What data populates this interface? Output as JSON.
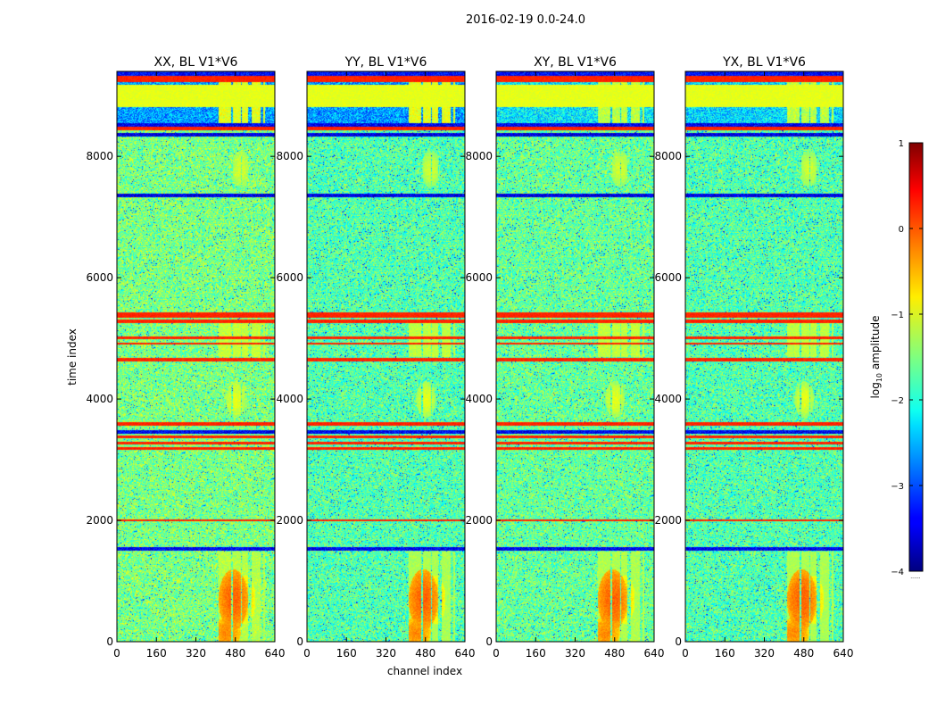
{
  "chart_data": {
    "type": "heatmap",
    "title": "2016-02-19 0.0-24.0",
    "xlabel": "channel index",
    "ylabel": "time index",
    "xlim": [
      0,
      640
    ],
    "ylim": [
      0,
      9400
    ],
    "x_ticks": [
      0,
      160,
      320,
      480,
      640
    ],
    "y_ticks": [
      0,
      2000,
      4000,
      6000,
      8000
    ],
    "colorbar": {
      "label_prefix": "log",
      "label_sub": "10",
      "label_suffix": " amplitude",
      "range": [
        -4,
        1
      ],
      "ticks": [
        1,
        0,
        -1,
        -2,
        -3,
        -4
      ],
      "tick_labels": [
        "1",
        "0",
        "−1",
        "−2",
        "−3",
        "−4"
      ],
      "colormap": "jet",
      "offset_label": "......"
    },
    "panels": [
      {
        "title": "XX, BL V1*V6",
        "background": -1.5,
        "top_block": -2.6,
        "top_rfi": -1.0,
        "noise": 0.6
      },
      {
        "title": "YY, BL V1*V6",
        "background": -1.7,
        "top_block": -2.6,
        "top_rfi": -1.0,
        "noise": 0.6
      },
      {
        "title": "XY, BL V1*V6",
        "background": -1.6,
        "top_block": -2.2,
        "top_rfi": -1.2,
        "noise": 0.6
      },
      {
        "title": "YX, BL V1*V6",
        "background": -1.7,
        "top_block": -2.3,
        "top_rfi": -1.2,
        "noise": 0.6
      }
    ],
    "flagged_time_bands": [
      {
        "t0": 9230,
        "t1": 9330,
        "value": 0.2
      },
      {
        "t0": 8820,
        "t1": 9180,
        "value": -1.0
      },
      {
        "t0": 8500,
        "t1": 8560,
        "value": -3.4
      },
      {
        "t0": 8430,
        "t1": 8500,
        "value": 0.2
      },
      {
        "t0": 8330,
        "t1": 8390,
        "value": -3.5
      },
      {
        "t0": 7330,
        "t1": 7390,
        "value": -3.5
      },
      {
        "t0": 5350,
        "t1": 5430,
        "value": 0.2
      },
      {
        "t0": 5260,
        "t1": 5320,
        "value": 0.2
      },
      {
        "t0": 5000,
        "t1": 5040,
        "value": 0.2
      },
      {
        "t0": 4900,
        "t1": 4940,
        "value": 0.2
      },
      {
        "t0": 4620,
        "t1": 4680,
        "value": 0.2
      },
      {
        "t0": 3570,
        "t1": 3630,
        "value": 0.2
      },
      {
        "t0": 3440,
        "t1": 3490,
        "value": -3.4
      },
      {
        "t0": 3360,
        "t1": 3400,
        "value": 0.2
      },
      {
        "t0": 3260,
        "t1": 3300,
        "value": 0.2
      },
      {
        "t0": 3170,
        "t1": 3210,
        "value": 0.2
      },
      {
        "t0": 1990,
        "t1": 2030,
        "value": 0.2
      },
      {
        "t0": 1510,
        "t1": 1570,
        "value": -3.4
      }
    ],
    "rfi_channel_ranges": [
      [
        410,
        460
      ],
      [
        470,
        500
      ],
      [
        505,
        530
      ],
      [
        545,
        580
      ],
      [
        590,
        600
      ]
    ],
    "rfi_hotspots": [
      {
        "c": 470,
        "t": 700,
        "w": 60,
        "h": 500,
        "value": -0.1
      },
      {
        "c": 440,
        "t": 150,
        "w": 60,
        "h": 250,
        "value": -0.3
      },
      {
        "c": 520,
        "t": 700,
        "w": 40,
        "h": 400,
        "value": -0.6
      },
      {
        "c": 480,
        "t": 4000,
        "w": 40,
        "h": 300,
        "value": -1.0
      },
      {
        "c": 500,
        "t": 7800,
        "w": 40,
        "h": 300,
        "value": -1.1
      }
    ]
  }
}
